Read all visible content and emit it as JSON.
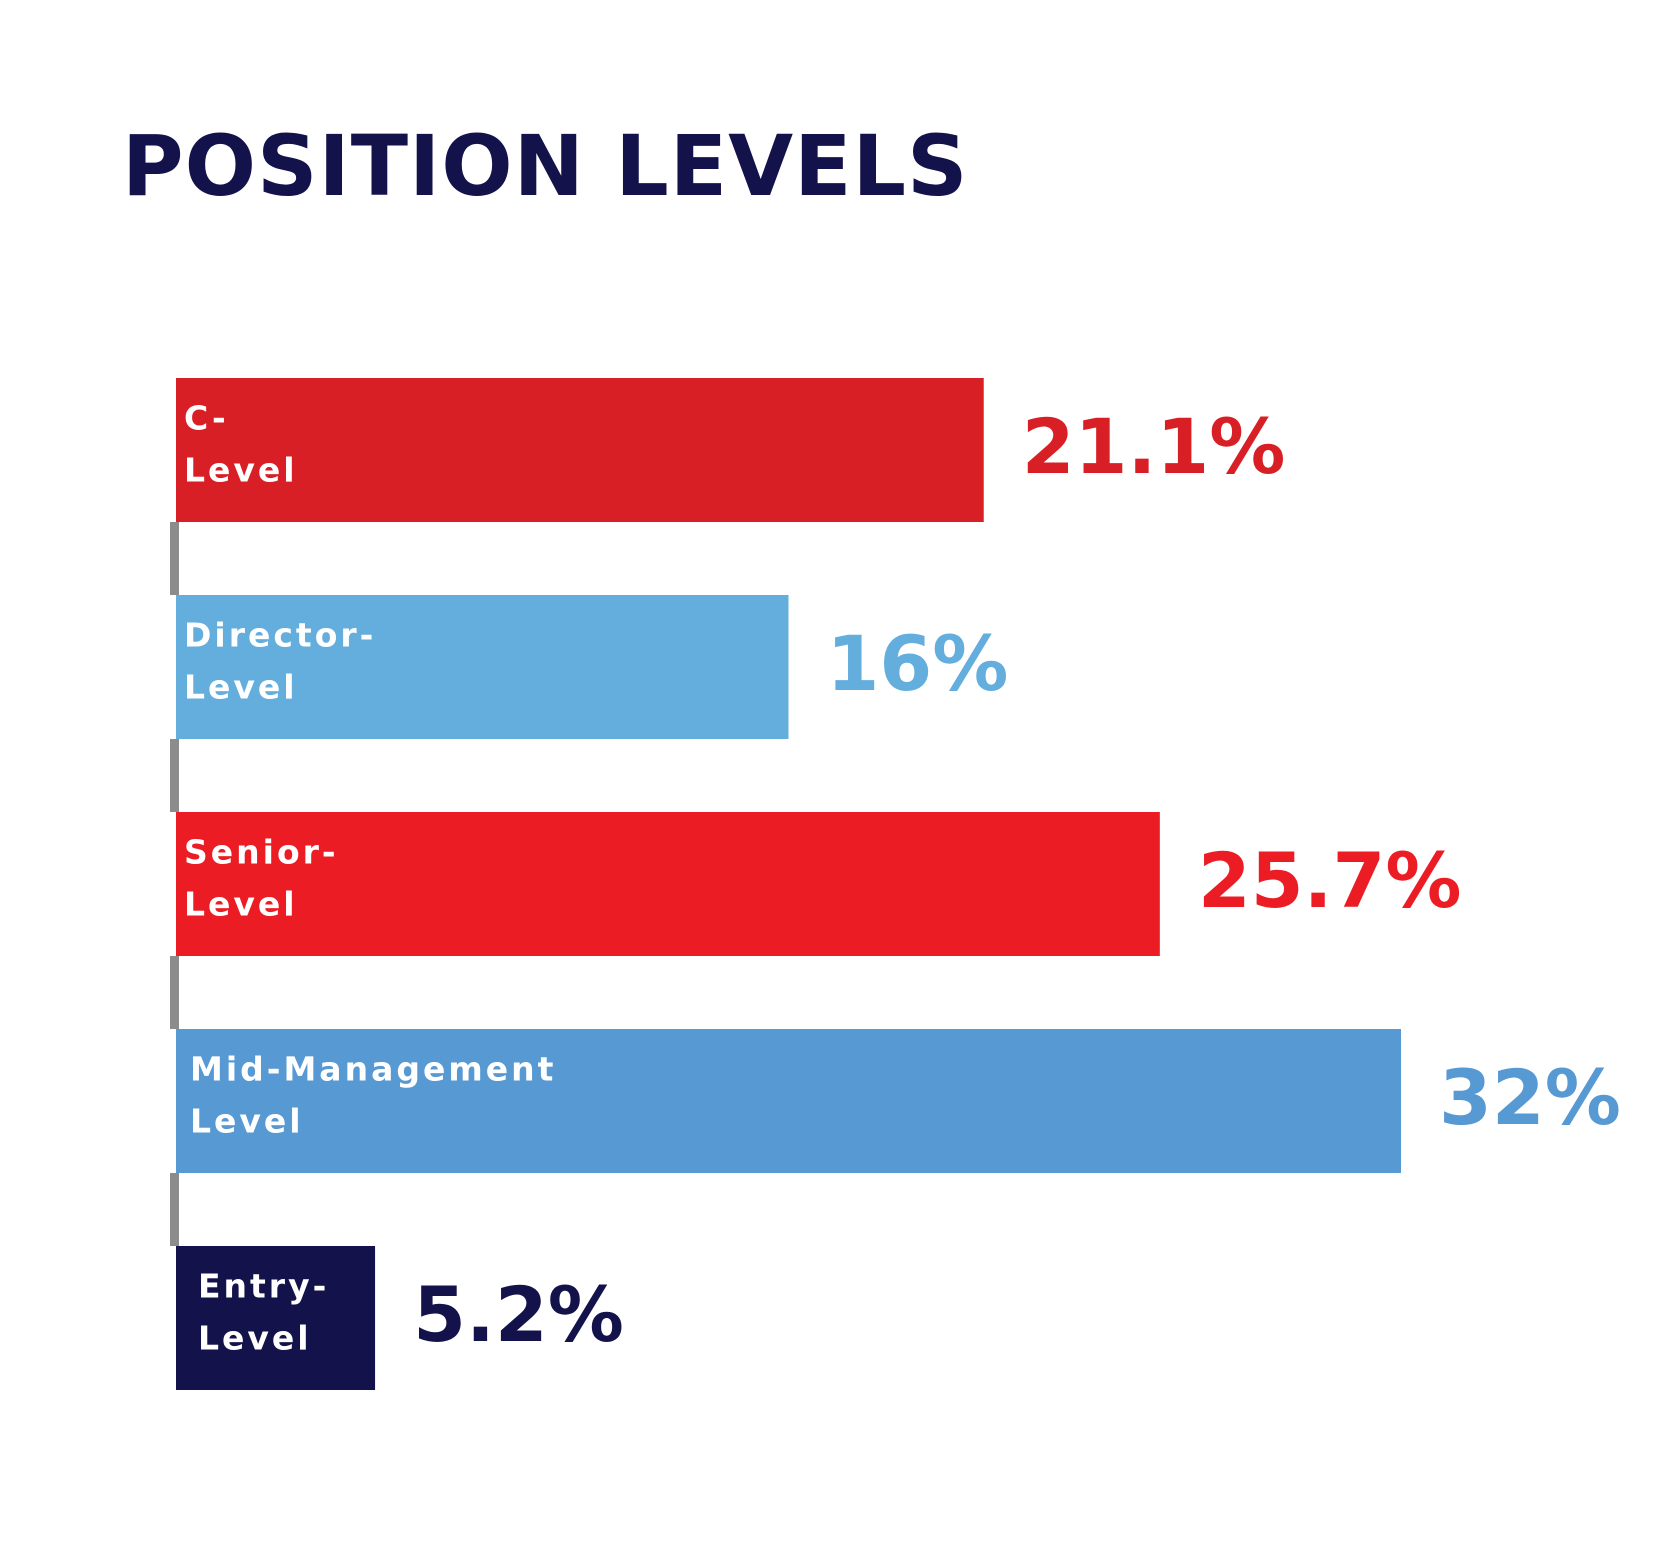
{
  "chart_data": {
    "type": "bar",
    "orientation": "horizontal",
    "title": "POSITION LEVELS",
    "categories": [
      [
        "C-",
        "Level"
      ],
      [
        "Director-",
        "Level"
      ],
      [
        "Senior-",
        "Level"
      ],
      [
        "Mid-Management",
        "Level"
      ],
      [
        "Entry-",
        "Level"
      ]
    ],
    "values": [
      21.1,
      16,
      25.7,
      32,
      5.2
    ],
    "value_labels": [
      "21.1%",
      "16%",
      "25.7%",
      "32%",
      "5.2%"
    ],
    "colors": [
      "#d91f26",
      "#64aede",
      "#ec1c24",
      "#5799d3",
      "#14124a"
    ]
  }
}
